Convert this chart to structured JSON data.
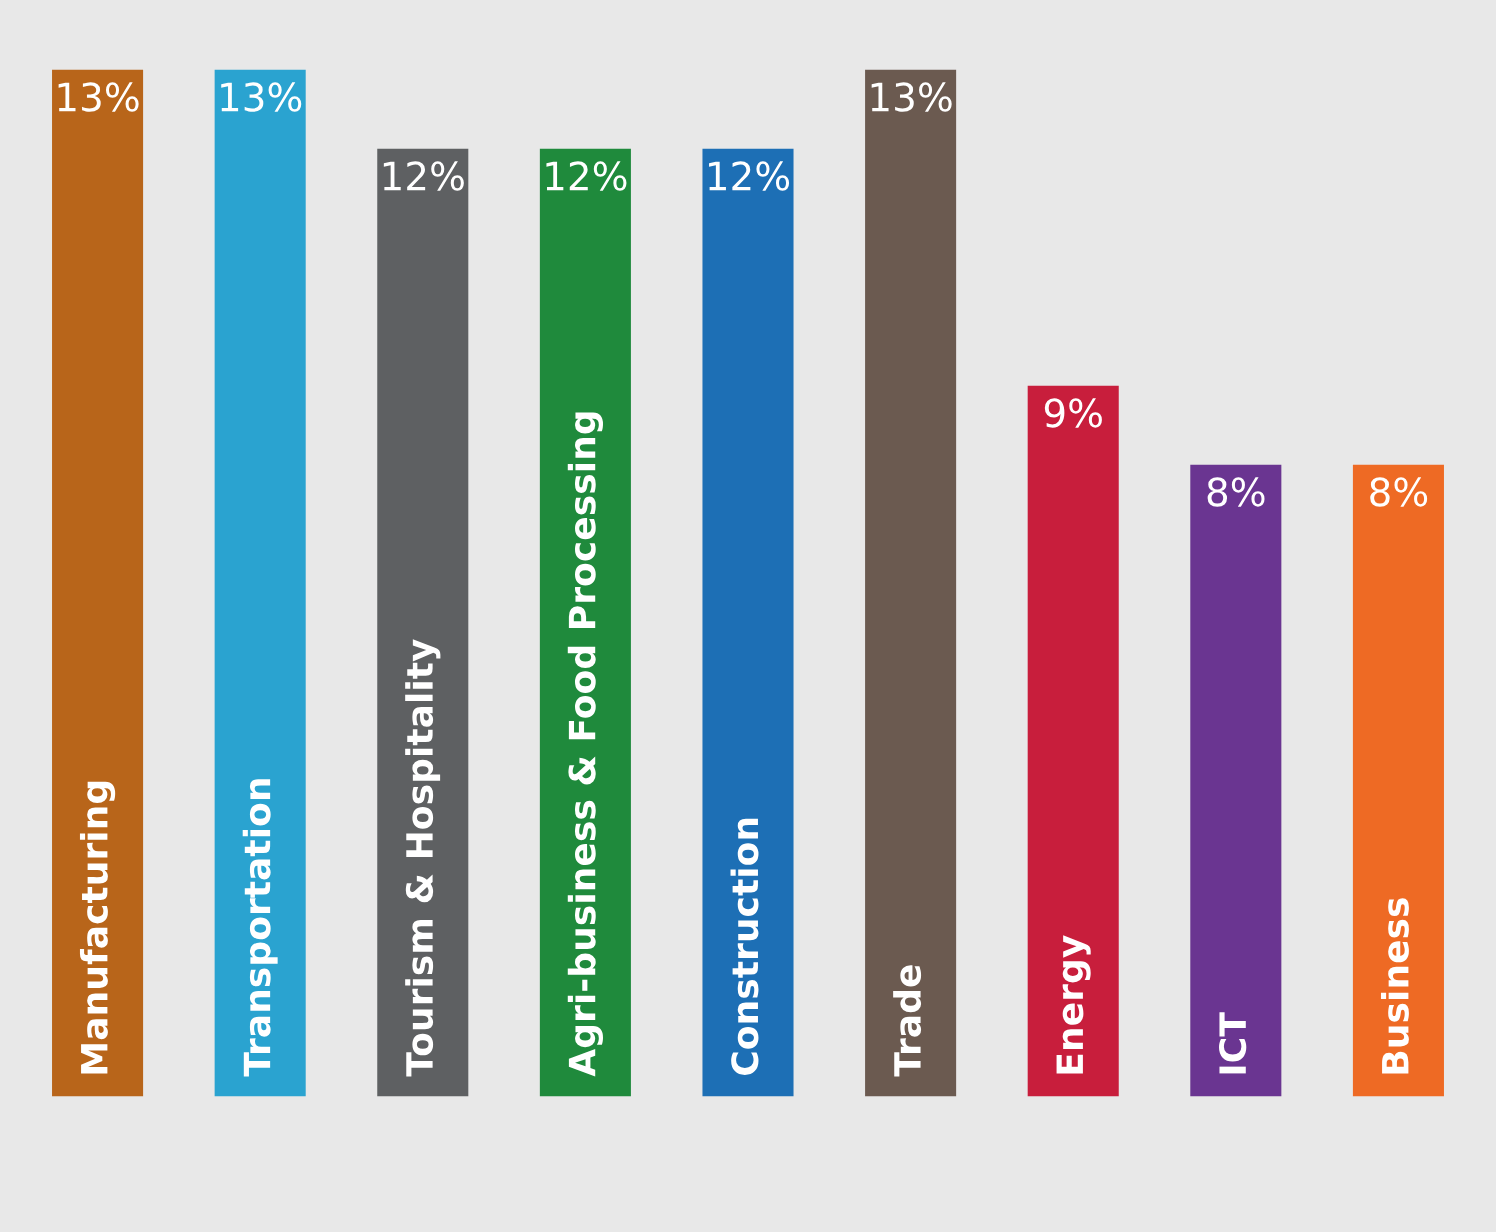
{
  "chart_data": {
    "type": "bar",
    "categories": [
      "Manufacturing",
      "Transportation",
      "Tourism & Hospitality",
      "Agri-business & Food Processing",
      "Construction",
      "Trade",
      "Energy",
      "ICT",
      "Business"
    ],
    "values": [
      13,
      13,
      12,
      12,
      12,
      13,
      9,
      8,
      8
    ],
    "value_labels": [
      "13%",
      "13%",
      "12%",
      "12%",
      "12%",
      "13%",
      "9%",
      "8%",
      "8%"
    ],
    "colors": [
      "#b8651a",
      "#2aa3d0",
      "#5e6062",
      "#1f8a3c",
      "#1d6fb5",
      "#6b5a50",
      "#c81e3c",
      "#6a3591",
      "#ee6a24"
    ],
    "legend": false
  }
}
